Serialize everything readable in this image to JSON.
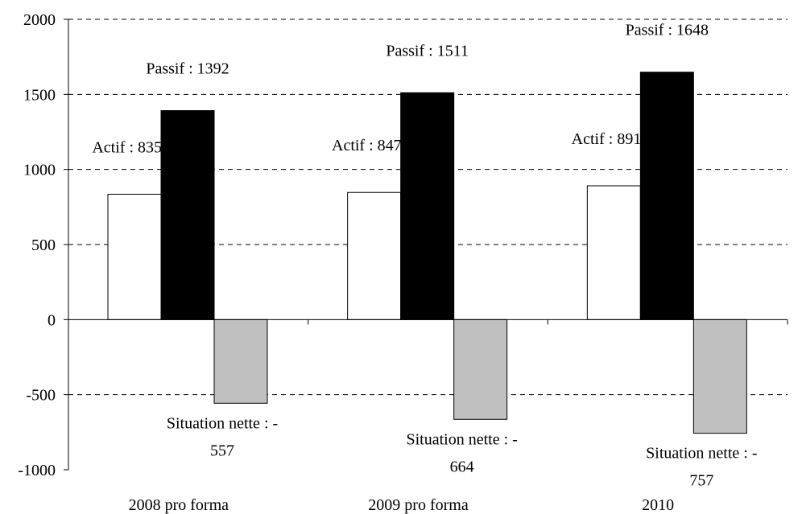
{
  "chart_data": {
    "type": "bar",
    "title": "",
    "xlabel": "",
    "ylabel": "",
    "categories": [
      "2008 pro forma",
      "2009 pro forma",
      "2010"
    ],
    "series": [
      {
        "values": [
          835,
          847,
          891
        ],
        "color": "#ffffff"
      },
      {
        "values": [
          1392,
          1511,
          1648
        ],
        "color": "#000000"
      },
      {
        "values": [
          -557,
          -664,
          -757
        ],
        "color": "#c0c0c0"
      }
    ],
    "data_labels": [
      [
        {
          "lines": [
            "Actif : 835"
          ]
        },
        {
          "lines": [
            "Passif : 1392"
          ]
        },
        {
          "lines": [
            "Situation nette : -",
            "557"
          ]
        }
      ],
      [
        {
          "lines": [
            "Actif : 847"
          ]
        },
        {
          "lines": [
            "Passif : 1511"
          ]
        },
        {
          "lines": [
            "Situation nette : -",
            "664"
          ]
        }
      ],
      [
        {
          "lines": [
            "Actif : 891"
          ]
        },
        {
          "lines": [
            "Passif : 1648"
          ]
        },
        {
          "lines": [
            "Situation nette : -",
            "757"
          ]
        }
      ]
    ],
    "ylim": [
      -1000,
      2000
    ],
    "yticks": [
      2000,
      1500,
      1000,
      500,
      0,
      -500,
      -1000
    ],
    "ytick_labels": [
      "2000",
      "1500",
      "1000",
      "500",
      "0",
      "-500",
      "-1000"
    ],
    "grid": "horizontal-dashed",
    "legend": "none"
  }
}
